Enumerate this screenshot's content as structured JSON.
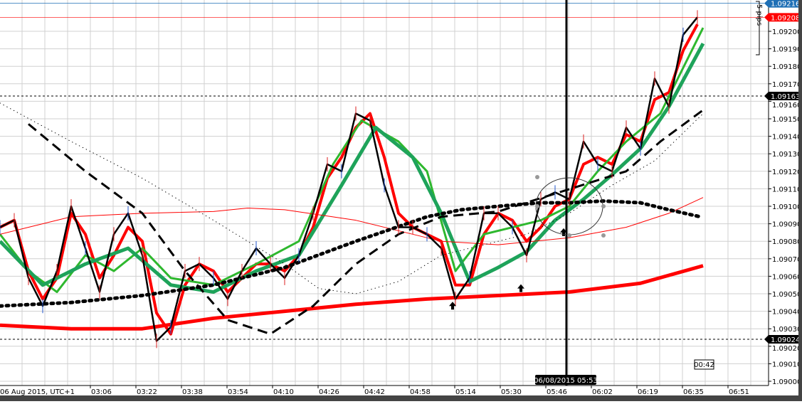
{
  "chart_data": {
    "type": "line",
    "date_label": "06 Aug 2015, UTC+1",
    "x_ticks": [
      "03:06",
      "03:22",
      "03:38",
      "03:54",
      "04:10",
      "04:26",
      "04:42",
      "04:58",
      "05:14",
      "05:30",
      "05:46",
      "06:02",
      "06:19",
      "06:35",
      "06:51"
    ],
    "y_ticks": [
      "1.09000",
      "1.09010",
      "1.09020",
      "1.09030",
      "1.09040",
      "1.09050",
      "1.09060",
      "1.09070",
      "1.09080",
      "1.09090",
      "1.09100",
      "1.09110",
      "1.09120",
      "1.09130",
      "1.09140",
      "1.09150",
      "1.09160",
      "1.09170",
      "1.09180",
      "1.09190",
      "1.09200"
    ],
    "ylim": [
      1.09,
      1.09218
    ],
    "grid": true,
    "times": [
      "02:34",
      "02:39",
      "02:44",
      "02:49",
      "02:54",
      "02:59",
      "03:04",
      "03:09",
      "03:14",
      "03:19",
      "03:24",
      "03:29",
      "03:34",
      "03:39",
      "03:44",
      "03:49",
      "03:54",
      "03:59",
      "04:04",
      "04:09",
      "04:14",
      "04:19",
      "04:24",
      "04:29",
      "04:34",
      "04:39",
      "04:44",
      "04:49",
      "04:54",
      "04:59",
      "05:04",
      "05:09",
      "05:14",
      "05:19",
      "05:24",
      "05:29",
      "05:34",
      "05:39",
      "05:44",
      "05:49",
      "05:54",
      "05:59",
      "06:04",
      "06:09",
      "06:14",
      "06:19",
      "06:24",
      "06:29",
      "06:34",
      "06:39"
    ],
    "price": {
      "color": "#000000",
      "values": [
        1.09088,
        1.09092,
        1.09059,
        1.09043,
        1.09063,
        1.091,
        1.09076,
        1.09051,
        1.09084,
        1.09096,
        1.09072,
        1.09023,
        1.09031,
        1.09063,
        1.09067,
        1.09059,
        1.09047,
        1.09063,
        1.09076,
        1.09067,
        1.09059,
        1.09072,
        1.09096,
        1.09124,
        1.0912,
        1.09153,
        1.09149,
        1.09112,
        1.09088,
        1.09088,
        1.09084,
        1.09076,
        1.09047,
        1.09059,
        1.09096,
        1.09096,
        1.09088,
        1.09072,
        1.09104,
        1.09108,
        1.09104,
        1.09137,
        1.09124,
        1.0912,
        1.09145,
        1.09133,
        1.09173,
        1.09157,
        1.09198,
        1.09208
      ]
    },
    "series": [
      {
        "color": "#ff0000",
        "style": "solid",
        "weight": "fast",
        "values": [
          1.09088,
          1.09092,
          1.09063,
          1.09047,
          1.09059,
          1.09096,
          1.09084,
          1.09059,
          1.09072,
          1.09088,
          1.0908,
          1.09039,
          1.09027,
          1.09055,
          1.09067,
          1.09063,
          1.09051,
          1.09059,
          1.09067,
          1.09067,
          1.09063,
          1.09072,
          1.09088,
          1.09116,
          1.09128,
          1.09145,
          1.09153,
          1.09128,
          1.09096,
          1.09088,
          1.09084,
          1.0908,
          1.09055,
          1.09055,
          1.09084,
          1.09096,
          1.09092,
          1.0908,
          1.09088,
          1.091,
          1.09104,
          1.09124,
          1.09128,
          1.09124,
          1.09141,
          1.09137,
          1.09161,
          1.09165,
          1.09189,
          1.09204
        ]
      },
      {
        "color": "#2eb82e",
        "style": "solid",
        "weight": "medium",
        "points": [
          [
            "02:34",
            1.09084
          ],
          [
            "02:44",
            1.09063
          ],
          [
            "02:54",
            1.09051
          ],
          [
            "03:04",
            1.09072
          ],
          [
            "03:14",
            1.09063
          ],
          [
            "03:24",
            1.09076
          ],
          [
            "03:34",
            1.09059
          ],
          [
            "03:49",
            1.09055
          ],
          [
            "04:04",
            1.09067
          ],
          [
            "04:19",
            1.0908
          ],
          [
            "04:31",
            1.09124
          ],
          [
            "04:41",
            1.09149
          ],
          [
            "04:54",
            1.09137
          ],
          [
            "05:04",
            1.0912
          ],
          [
            "05:14",
            1.09063
          ],
          [
            "05:24",
            1.09084
          ],
          [
            "05:34",
            1.09088
          ],
          [
            "05:44",
            1.09092
          ],
          [
            "05:54",
            1.091
          ],
          [
            "06:04",
            1.0912
          ],
          [
            "06:14",
            1.09137
          ],
          [
            "06:26",
            1.09153
          ],
          [
            "06:41",
            1.09202
          ]
        ]
      },
      {
        "color": "#1ea35a",
        "style": "solid",
        "weight": "slow",
        "points": [
          [
            "02:34",
            1.0908
          ],
          [
            "02:49",
            1.09055
          ],
          [
            "03:04",
            1.09067
          ],
          [
            "03:19",
            1.09076
          ],
          [
            "03:34",
            1.09055
          ],
          [
            "03:49",
            1.09051
          ],
          [
            "04:04",
            1.09063
          ],
          [
            "04:19",
            1.09072
          ],
          [
            "04:34",
            1.09112
          ],
          [
            "04:46",
            1.09145
          ],
          [
            "04:59",
            1.09128
          ],
          [
            "05:09",
            1.09096
          ],
          [
            "05:19",
            1.09057
          ],
          [
            "05:29",
            1.09065
          ],
          [
            "05:39",
            1.09074
          ],
          [
            "05:49",
            1.09092
          ],
          [
            "05:59",
            1.09104
          ],
          [
            "06:09",
            1.09118
          ],
          [
            "06:19",
            1.09133
          ],
          [
            "06:29",
            1.09157
          ],
          [
            "06:41",
            1.09193
          ]
        ]
      },
      {
        "color": "#ff0000",
        "style": "solid",
        "weight": "thin",
        "points": [
          [
            "02:34",
            1.09084
          ],
          [
            "02:59",
            1.09094
          ],
          [
            "03:24",
            1.09096
          ],
          [
            "03:49",
            1.09097
          ],
          [
            "04:01",
            1.09099
          ],
          [
            "04:14",
            1.09098
          ],
          [
            "04:39",
            1.09092
          ],
          [
            "04:54",
            1.09086
          ],
          [
            "05:09",
            1.0908
          ],
          [
            "05:29",
            1.09078
          ],
          [
            "05:54",
            1.09082
          ],
          [
            "06:14",
            1.09088
          ],
          [
            "06:29",
            1.09096
          ],
          [
            "06:41",
            1.09105
          ]
        ]
      },
      {
        "color": "#ff0000",
        "style": "solid",
        "weight": "thick",
        "points": [
          [
            "02:34",
            1.09032
          ],
          [
            "02:59",
            1.0903
          ],
          [
            "03:24",
            1.0903
          ],
          [
            "03:49",
            1.09036
          ],
          [
            "04:14",
            1.0904
          ],
          [
            "04:39",
            1.09044
          ],
          [
            "05:04",
            1.09047
          ],
          [
            "05:29",
            1.09049
          ],
          [
            "05:54",
            1.09051
          ],
          [
            "06:19",
            1.09056
          ],
          [
            "06:41",
            1.09066
          ]
        ]
      },
      {
        "color": "#000000",
        "style": "dotted",
        "weight": "thin",
        "points": [
          [
            "02:34",
            1.09159
          ],
          [
            "02:59",
            1.09137
          ],
          [
            "03:24",
            1.09116
          ],
          [
            "03:49",
            1.09092
          ],
          [
            "04:14",
            1.09067
          ],
          [
            "04:26",
            1.09053
          ],
          [
            "04:39",
            1.0905
          ],
          [
            "04:54",
            1.09057
          ],
          [
            "05:09",
            1.09072
          ],
          [
            "05:24",
            1.09078
          ],
          [
            "05:39",
            1.09084
          ],
          [
            "05:54",
            1.09096
          ],
          [
            "06:09",
            1.09112
          ],
          [
            "06:24",
            1.09126
          ],
          [
            "06:41",
            1.09153
          ]
        ]
      },
      {
        "color": "#000000",
        "style": "dotted",
        "weight": "thick",
        "points": [
          [
            "02:34",
            1.09043
          ],
          [
            "02:59",
            1.09045
          ],
          [
            "03:24",
            1.09049
          ],
          [
            "03:49",
            1.09055
          ],
          [
            "04:14",
            1.09065
          ],
          [
            "04:39",
            1.0908
          ],
          [
            "05:04",
            1.09094
          ],
          [
            "05:16",
            1.09098
          ],
          [
            "05:29",
            1.091
          ],
          [
            "05:44",
            1.09102
          ],
          [
            "05:54",
            1.09102
          ],
          [
            "06:06",
            1.09103
          ],
          [
            "06:19",
            1.09102
          ],
          [
            "06:29",
            1.09098
          ],
          [
            "06:40",
            1.09094
          ]
        ]
      },
      {
        "color": "#000000",
        "style": "dashed",
        "weight": "medium",
        "points": [
          [
            "02:44",
            1.09147
          ],
          [
            "03:04",
            1.0912
          ],
          [
            "03:24",
            1.09096
          ],
          [
            "03:39",
            1.09063
          ],
          [
            "03:54",
            1.09035
          ],
          [
            "04:09",
            1.09027
          ],
          [
            "04:24",
            1.09043
          ],
          [
            "04:39",
            1.09067
          ],
          [
            "04:54",
            1.09084
          ],
          [
            "05:09",
            1.09094
          ],
          [
            "05:29",
            1.09097
          ],
          [
            "06:14",
            1.0912
          ],
          [
            "06:26",
            1.09137
          ],
          [
            "06:41",
            1.09155
          ]
        ]
      }
    ],
    "horizontal_lines": [
      {
        "price": 1.09163,
        "label": "1.09163",
        "color": "#000000",
        "style": "dashed"
      },
      {
        "price": 1.09024,
        "label": "1.09024",
        "color": "#000000",
        "style": "dashed"
      }
    ],
    "price_tags": [
      {
        "price": 1.09216,
        "label": "1.09216",
        "color": "#1e6fb5"
      },
      {
        "price": 1.09208,
        "label": "1.09208",
        "color": "#ff0000"
      }
    ],
    "arrows": [
      [
        "05:13",
        1.09043
      ],
      [
        "05:37",
        1.09053
      ],
      [
        "05:52",
        1.09085
      ]
    ],
    "crosshair": {
      "time": "05:53",
      "label": "06/08/2015 05:53"
    },
    "ruler_label": "5 pips",
    "countdown": "00:42"
  }
}
